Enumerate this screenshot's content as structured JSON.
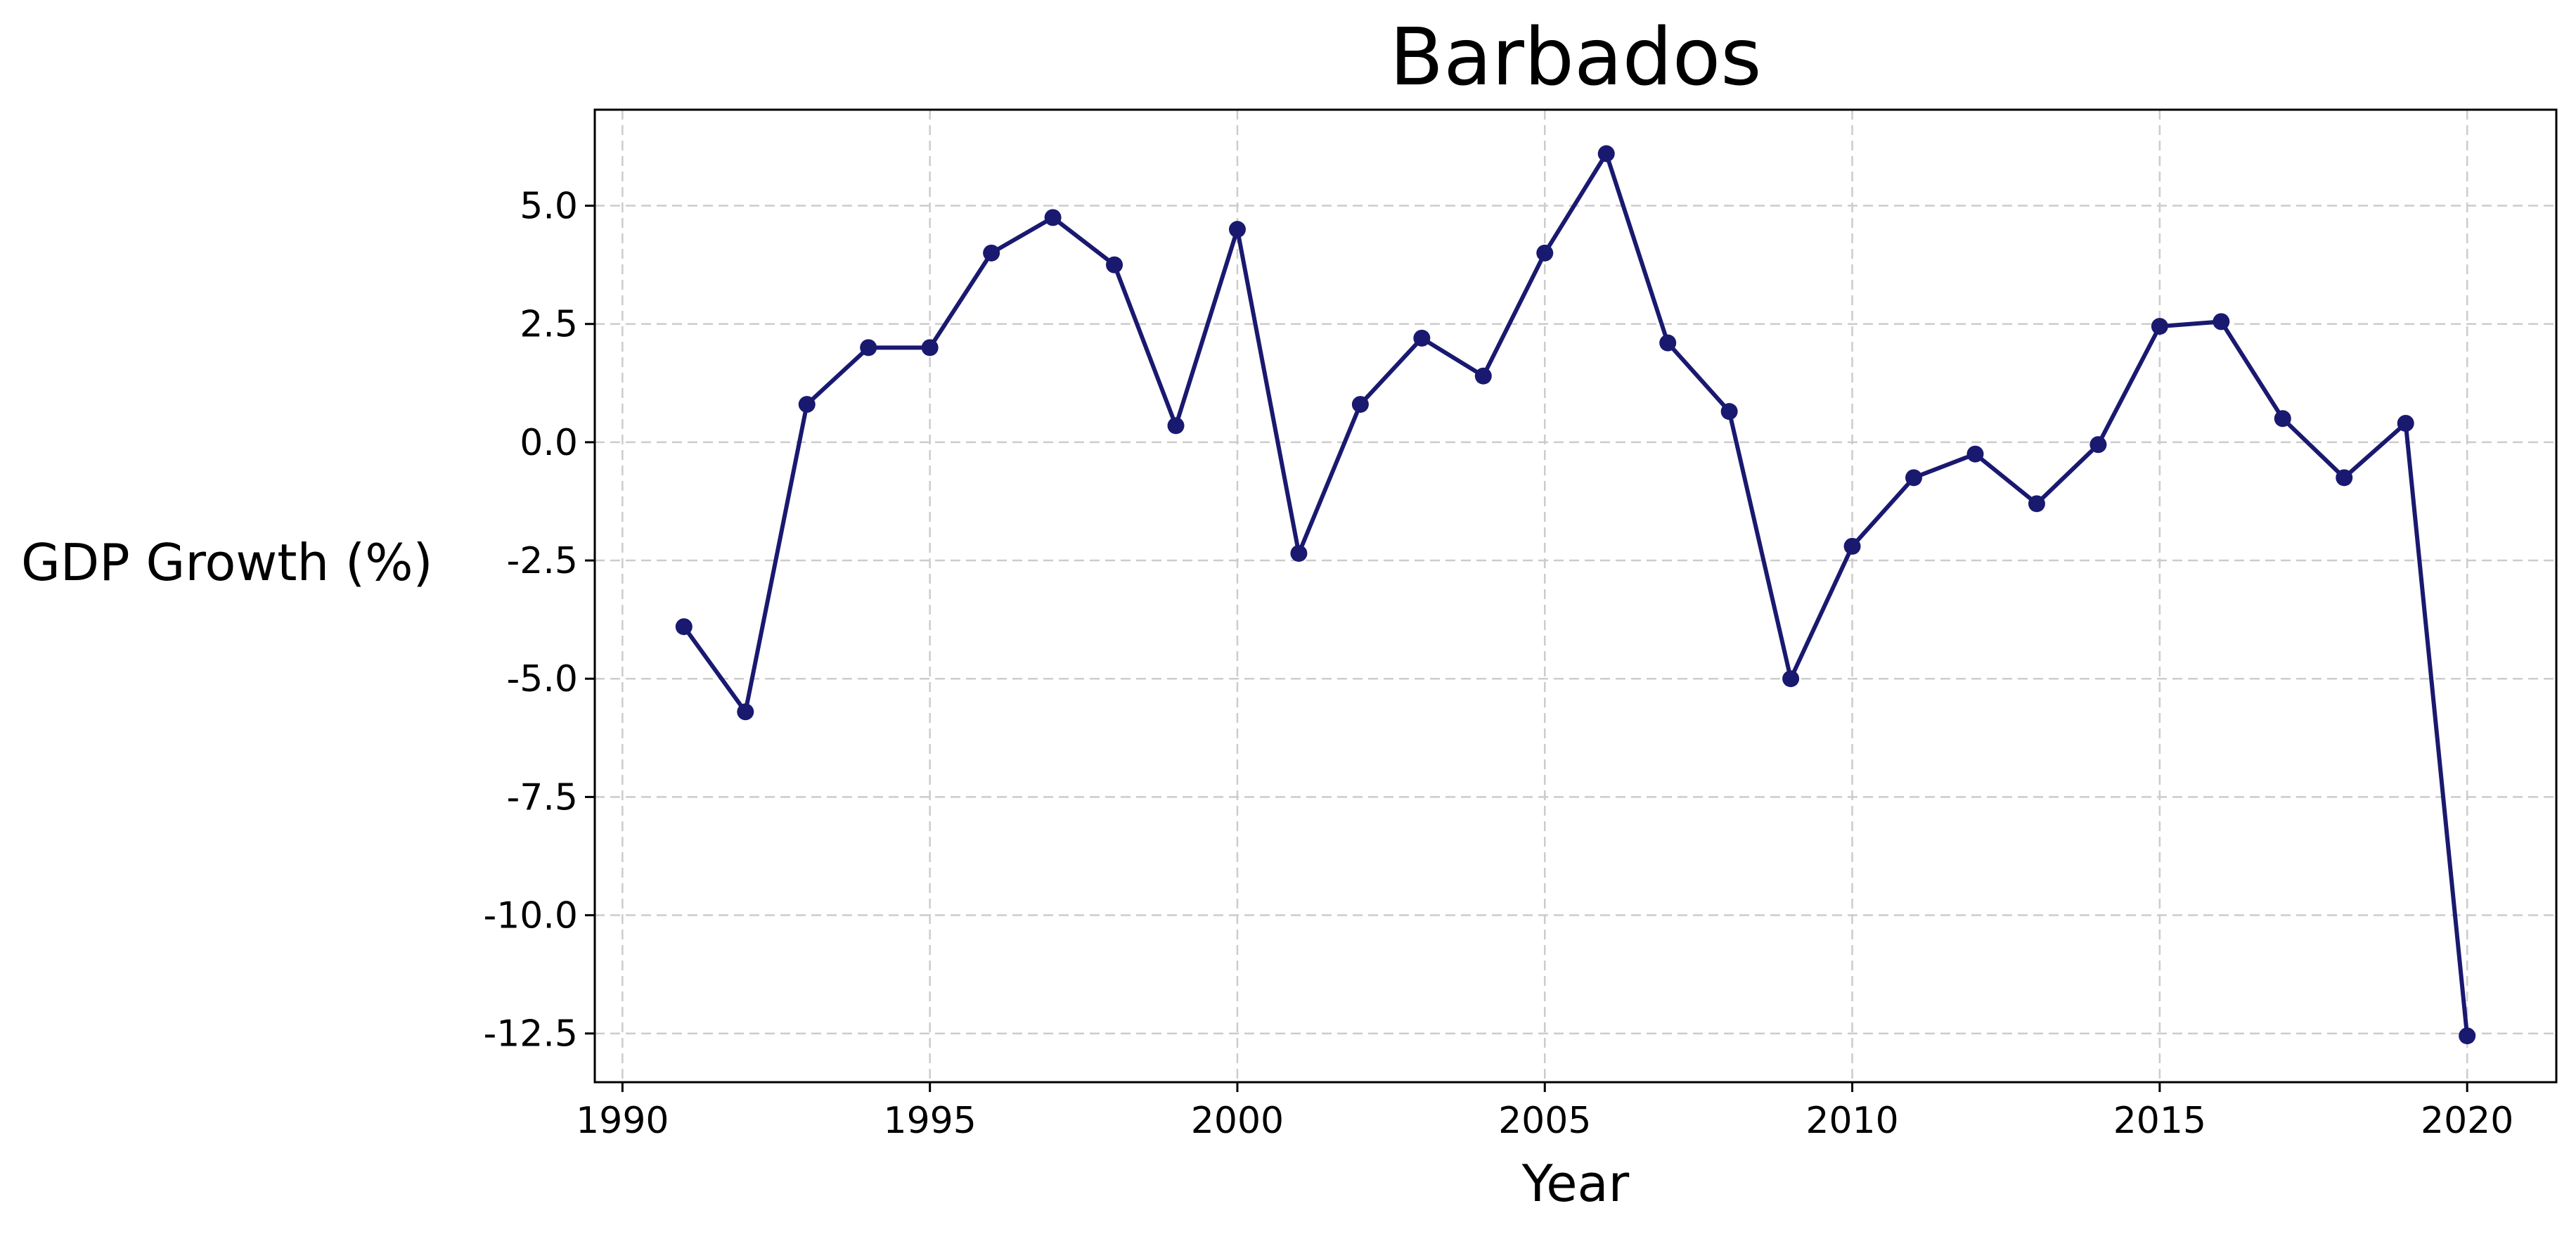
{
  "chart_data": {
    "type": "line",
    "title": "Barbados",
    "xlabel": "Year",
    "ylabel": "GDP Growth (%)",
    "xlim": [
      1989.55,
      2021.45
    ],
    "ylim": [
      -13.53,
      7.03
    ],
    "xticks": [
      1990,
      1995,
      2000,
      2005,
      2010,
      2015,
      2020
    ],
    "xtick_labels": [
      "1990",
      "1995",
      "2000",
      "2005",
      "2010",
      "2015",
      "2020"
    ],
    "yticks": [
      5.0,
      2.5,
      0.0,
      -2.5,
      -5.0,
      -7.5,
      -10.0,
      -12.5
    ],
    "ytick_labels": [
      "5.0",
      "2.5",
      "0.0",
      "-2.5",
      "-5.0",
      "-7.5",
      "-10.0",
      "-12.5"
    ],
    "grid": true,
    "grid_style": "dashed",
    "legend": false,
    "series": [
      {
        "color": "#191970",
        "marker": "circle",
        "x": [
          1991,
          1992,
          1993,
          1994,
          1995,
          1996,
          1997,
          1998,
          1999,
          2000,
          2001,
          2002,
          2003,
          2004,
          2005,
          2006,
          2007,
          2008,
          2009,
          2010,
          2011,
          2012,
          2013,
          2014,
          2015,
          2016,
          2017,
          2018,
          2019,
          2020
        ],
        "y": [
          -3.9,
          -5.7,
          0.8,
          2.0,
          2.0,
          4.0,
          4.75,
          3.75,
          0.35,
          4.5,
          -2.35,
          0.8,
          2.2,
          1.4,
          4.0,
          6.1,
          2.1,
          0.65,
          -5.0,
          -2.2,
          -0.75,
          -0.25,
          -1.3,
          -0.05,
          2.45,
          2.55,
          0.5,
          -0.75,
          0.4,
          -12.55
        ]
      }
    ]
  }
}
